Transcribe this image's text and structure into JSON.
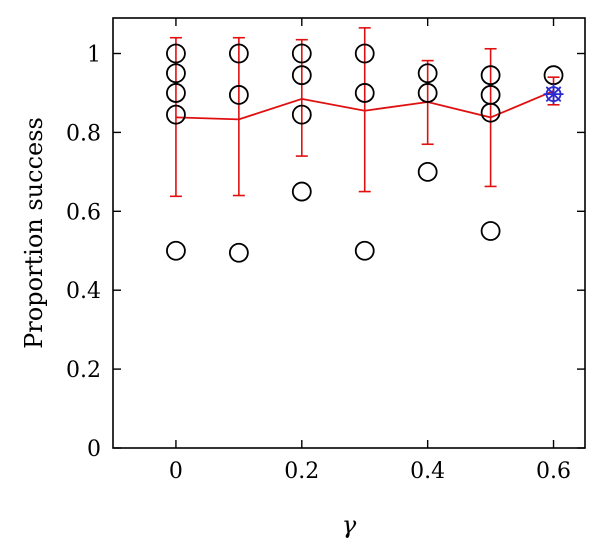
{
  "chart_data": {
    "type": "scatter",
    "title": "",
    "xlabel": "γ",
    "ylabel": "Proportion success",
    "xlim": [
      -0.1,
      0.65
    ],
    "ylim": [
      0,
      1.09
    ],
    "xticks": [
      0,
      0.2,
      0.4,
      0.6
    ],
    "xtick_labels": [
      "0",
      "0.2",
      "0.4",
      "0.6"
    ],
    "yticks": [
      0,
      0.2,
      0.4,
      0.6,
      0.8,
      1
    ],
    "ytick_labels": [
      "0",
      "0.2",
      "0.4",
      "0.6",
      "0.8",
      "1"
    ],
    "grid": false,
    "colors": {
      "points": "#000000",
      "mean_line": "#e01010",
      "highlight": "#2a2ad0"
    },
    "points": [
      {
        "x": 0,
        "y": 1.0
      },
      {
        "x": 0,
        "y": 0.95
      },
      {
        "x": 0,
        "y": 0.9
      },
      {
        "x": 0,
        "y": 0.845
      },
      {
        "x": 0,
        "y": 0.5
      },
      {
        "x": 0.1,
        "y": 1.0
      },
      {
        "x": 0.1,
        "y": 0.895
      },
      {
        "x": 0.1,
        "y": 0.495
      },
      {
        "x": 0.2,
        "y": 1.0
      },
      {
        "x": 0.2,
        "y": 0.945
      },
      {
        "x": 0.2,
        "y": 0.845
      },
      {
        "x": 0.2,
        "y": 0.65
      },
      {
        "x": 0.3,
        "y": 1.0
      },
      {
        "x": 0.3,
        "y": 0.9
      },
      {
        "x": 0.3,
        "y": 0.5
      },
      {
        "x": 0.4,
        "y": 0.95
      },
      {
        "x": 0.4,
        "y": 0.9
      },
      {
        "x": 0.4,
        "y": 0.7
      },
      {
        "x": 0.5,
        "y": 0.945
      },
      {
        "x": 0.5,
        "y": 0.895
      },
      {
        "x": 0.5,
        "y": 0.85
      },
      {
        "x": 0.5,
        "y": 0.55
      },
      {
        "x": 0.6,
        "y": 0.945
      }
    ],
    "mean_series": {
      "x": [
        0,
        0.1,
        0.2,
        0.3,
        0.4,
        0.5,
        0.6
      ],
      "y": [
        0.838,
        0.833,
        0.885,
        0.855,
        0.877,
        0.838,
        0.905
      ],
      "error_lower": [
        0.638,
        0.64,
        0.74,
        0.65,
        0.77,
        0.663,
        0.87
      ],
      "error_upper": [
        1.04,
        1.04,
        1.035,
        1.065,
        0.982,
        1.012,
        0.94
      ]
    },
    "highlight_point": {
      "x": 0.6,
      "y": 0.897,
      "marker": "asterisk"
    }
  }
}
